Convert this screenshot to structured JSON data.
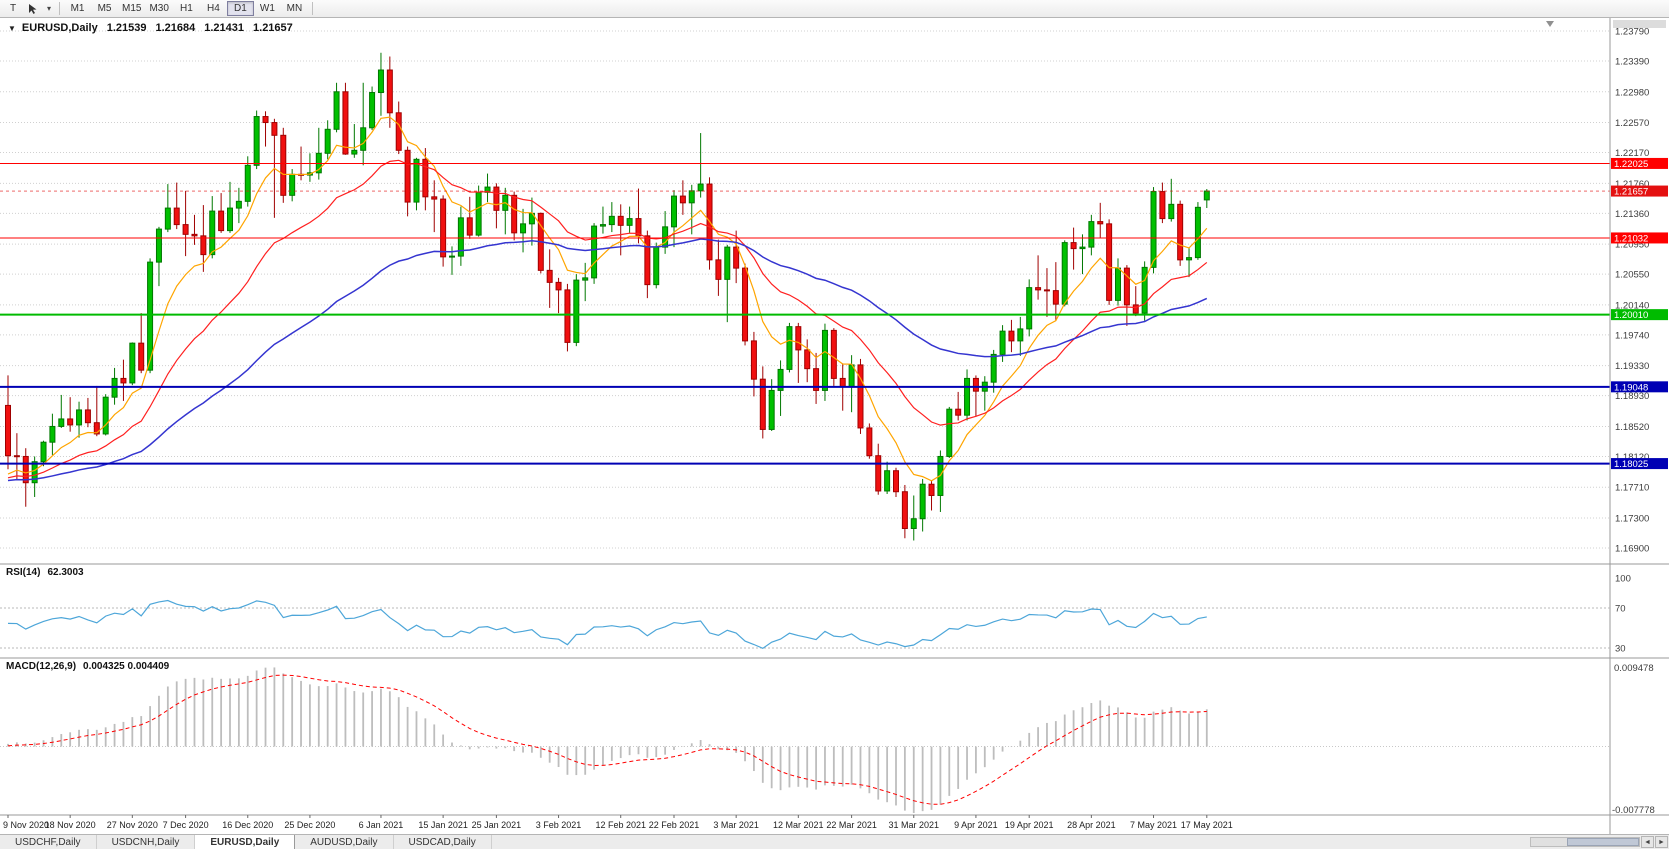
{
  "toolbar": {
    "tool_button": "T",
    "timeframes": [
      "M1",
      "M5",
      "M15",
      "M30",
      "H1",
      "H4",
      "D1",
      "W1",
      "MN"
    ],
    "active_timeframe": "D1"
  },
  "icons": {
    "symbol_marker": "▼",
    "dropdown_caret": "▾",
    "scroll_left": "◄",
    "scroll_right": "►"
  },
  "chart": {
    "type": "candlestick",
    "symbol_label": "EURUSD,Daily",
    "ohlc": {
      "open": "1.21539",
      "high": "1.21684",
      "low": "1.21431",
      "close": "1.21657"
    },
    "current_price": "1.21657",
    "scale": {
      "top": 1.2379,
      "bottom": 1.169
    },
    "price_axis": [
      "1.23790",
      "1.23390",
      "1.22980",
      "1.22570",
      "1.22170",
      "1.21760",
      "1.21360",
      "1.20950",
      "1.20550",
      "1.20140",
      "1.19740",
      "1.19330",
      "1.18930",
      "1.18520",
      "1.18120",
      "1.17710",
      "1.17300",
      "1.16900"
    ],
    "hlines": [
      {
        "value": 1.22025,
        "label": "1.22025",
        "color": "#ff0000",
        "width": 1
      },
      {
        "value": 1.21032,
        "label": "1.21032",
        "color": "#ff0000",
        "width": 1
      },
      {
        "value": 1.2001,
        "label": "1.20010",
        "color": "#00bb00",
        "width": 2
      },
      {
        "value": 1.19048,
        "label": "1.19048",
        "color": "#0000b4",
        "width": 2
      },
      {
        "value": 1.18025,
        "label": "1.18025",
        "color": "#0000b4",
        "width": 2
      }
    ],
    "dates": [
      {
        "index": 0,
        "label": "9 Nov 2020"
      },
      {
        "index": 7,
        "label": "18 Nov 2020"
      },
      {
        "index": 14,
        "label": "27 Nov 2020"
      },
      {
        "index": 20,
        "label": "7 Dec 2020"
      },
      {
        "index": 27,
        "label": "16 Dec 2020"
      },
      {
        "index": 34,
        "label": "25 Dec 2020"
      },
      {
        "index": 42,
        "label": "6 Jan 2021"
      },
      {
        "index": 49,
        "label": "15 Jan 2021"
      },
      {
        "index": 55,
        "label": "25 Jan 2021"
      },
      {
        "index": 62,
        "label": "3 Feb 2021"
      },
      {
        "index": 69,
        "label": "12 Feb 2021"
      },
      {
        "index": 75,
        "label": "22 Feb 2021"
      },
      {
        "index": 82,
        "label": "3 Mar 2021"
      },
      {
        "index": 89,
        "label": "12 Mar 2021"
      },
      {
        "index": 95,
        "label": "22 Mar 2021"
      },
      {
        "index": 102,
        "label": "31 Mar 2021"
      },
      {
        "index": 109,
        "label": "9 Apr 2021"
      },
      {
        "index": 115,
        "label": "19 Apr 2021"
      },
      {
        "index": 122,
        "label": "28 Apr 2021"
      },
      {
        "index": 129,
        "label": "7 May 2021"
      },
      {
        "index": 135,
        "label": "17 May 2021"
      }
    ],
    "candles": [
      [
        1.188,
        1.192,
        1.1795,
        1.1813
      ],
      [
        1.1813,
        1.1843,
        1.178,
        1.1812
      ],
      [
        1.1812,
        1.1823,
        1.1745,
        1.1777
      ],
      [
        1.1777,
        1.1812,
        1.1758,
        1.1805
      ],
      [
        1.1805,
        1.1833,
        1.1799,
        1.1831
      ],
      [
        1.1831,
        1.1869,
        1.1814,
        1.1852
      ],
      [
        1.1852,
        1.1894,
        1.185,
        1.1862
      ],
      [
        1.1862,
        1.1891,
        1.1845,
        1.1854
      ],
      [
        1.1854,
        1.1885,
        1.1837,
        1.1874
      ],
      [
        1.1874,
        1.189,
        1.1851,
        1.1857
      ],
      [
        1.1857,
        1.1906,
        1.1839,
        1.1842
      ],
      [
        1.1842,
        1.1895,
        1.184,
        1.1891
      ],
      [
        1.1891,
        1.193,
        1.1881,
        1.1916
      ],
      [
        1.1916,
        1.1941,
        1.1886,
        1.191
      ],
      [
        1.191,
        1.1964,
        1.1907,
        1.1963
      ],
      [
        1.1963,
        1.2003,
        1.1923,
        1.1927
      ],
      [
        1.1927,
        1.2076,
        1.1923,
        1.2071
      ],
      [
        1.2071,
        1.2118,
        1.2039,
        1.2115
      ],
      [
        1.2115,
        1.2175,
        1.2111,
        1.2143
      ],
      [
        1.2143,
        1.2177,
        1.2115,
        1.2121
      ],
      [
        1.2121,
        1.2166,
        1.2079,
        1.2108
      ],
      [
        1.2108,
        1.2134,
        1.2094,
        1.2106
      ],
      [
        1.2106,
        1.2147,
        1.2058,
        1.2081
      ],
      [
        1.2081,
        1.2159,
        1.2076,
        1.2139
      ],
      [
        1.2139,
        1.2163,
        1.211,
        1.2113
      ],
      [
        1.2113,
        1.2178,
        1.211,
        1.2143
      ],
      [
        1.2143,
        1.217,
        1.2123,
        1.2152
      ],
      [
        1.2152,
        1.2212,
        1.2145,
        1.22
      ],
      [
        1.22,
        1.2273,
        1.2195,
        1.2265
      ],
      [
        1.2265,
        1.2272,
        1.2225,
        1.2257
      ],
      [
        1.2257,
        1.2262,
        1.213,
        1.224
      ],
      [
        1.224,
        1.225,
        1.215,
        1.216
      ],
      [
        1.216,
        1.2195,
        1.2152,
        1.2188
      ],
      [
        1.2188,
        1.2225,
        1.218,
        1.2187
      ],
      [
        1.2187,
        1.2216,
        1.2178,
        1.219
      ],
      [
        1.219,
        1.225,
        1.2181,
        1.2216
      ],
      [
        1.2216,
        1.226,
        1.2208,
        1.2248
      ],
      [
        1.2248,
        1.231,
        1.2244,
        1.2298
      ],
      [
        1.2298,
        1.231,
        1.2214,
        1.2215
      ],
      [
        1.2215,
        1.2255,
        1.221,
        1.222
      ],
      [
        1.222,
        1.231,
        1.22,
        1.225
      ],
      [
        1.225,
        1.2305,
        1.2247,
        1.2297
      ],
      [
        1.2297,
        1.235,
        1.2266,
        1.2327
      ],
      [
        1.2327,
        1.2345,
        1.225,
        1.227
      ],
      [
        1.227,
        1.2285,
        1.2215,
        1.222
      ],
      [
        1.222,
        1.2225,
        1.2132,
        1.2151
      ],
      [
        1.2151,
        1.221,
        1.214,
        1.2208
      ],
      [
        1.2208,
        1.2223,
        1.214,
        1.2158
      ],
      [
        1.2158,
        1.218,
        1.2111,
        1.2155
      ],
      [
        1.2155,
        1.216,
        1.2065,
        1.2078
      ],
      [
        1.2078,
        1.2092,
        1.2054,
        1.2079
      ],
      [
        1.2079,
        1.2145,
        1.2066,
        1.213
      ],
      [
        1.213,
        1.2158,
        1.2102,
        1.2107
      ],
      [
        1.2107,
        1.2173,
        1.2105,
        1.2164
      ],
      [
        1.2164,
        1.2189,
        1.2151,
        1.2171
      ],
      [
        1.2171,
        1.2176,
        1.2116,
        1.214
      ],
      [
        1.214,
        1.217,
        1.2108,
        1.216
      ],
      [
        1.216,
        1.2165,
        1.21,
        1.211
      ],
      [
        1.211,
        1.2142,
        1.2084,
        1.2122
      ],
      [
        1.2122,
        1.2157,
        1.2093,
        1.2136
      ],
      [
        1.2136,
        1.2137,
        1.2056,
        1.206
      ],
      [
        1.206,
        1.2088,
        1.201,
        1.2044
      ],
      [
        1.2044,
        1.205,
        1.2003,
        1.2034
      ],
      [
        1.2034,
        1.2042,
        1.1952,
        1.1964
      ],
      [
        1.1964,
        1.2055,
        1.1959,
        1.2047
      ],
      [
        1.2047,
        1.207,
        1.2019,
        1.205
      ],
      [
        1.205,
        1.2123,
        1.2042,
        1.2119
      ],
      [
        1.2119,
        1.2145,
        1.2109,
        1.2121
      ],
      [
        1.2121,
        1.2151,
        1.2111,
        1.2132
      ],
      [
        1.2132,
        1.2148,
        1.208,
        1.212
      ],
      [
        1.212,
        1.2145,
        1.211,
        1.2129
      ],
      [
        1.2129,
        1.2169,
        1.2096,
        1.2106
      ],
      [
        1.2106,
        1.2113,
        1.2023,
        1.2041
      ],
      [
        1.2041,
        1.2097,
        1.2036,
        1.2091
      ],
      [
        1.2091,
        1.2139,
        1.2082,
        1.2118
      ],
      [
        1.2118,
        1.2167,
        1.2091,
        1.2159
      ],
      [
        1.2159,
        1.218,
        1.2134,
        1.215
      ],
      [
        1.215,
        1.2174,
        1.2108,
        1.2166
      ],
      [
        1.2166,
        1.2243,
        1.2157,
        1.2175
      ],
      [
        1.2175,
        1.2184,
        1.2061,
        1.2074
      ],
      [
        1.2074,
        1.2101,
        1.2026,
        1.2048
      ],
      [
        1.2048,
        1.2094,
        1.1991,
        1.2091
      ],
      [
        1.2091,
        1.2113,
        1.2043,
        1.2063
      ],
      [
        1.2063,
        1.2069,
        1.196,
        1.1966
      ],
      [
        1.1966,
        1.1978,
        1.1892,
        1.1915
      ],
      [
        1.1915,
        1.1932,
        1.1836,
        1.1848
      ],
      [
        1.1848,
        1.1915,
        1.1846,
        1.19
      ],
      [
        1.19,
        1.194,
        1.1866,
        1.1928
      ],
      [
        1.1928,
        1.199,
        1.1924,
        1.1985
      ],
      [
        1.1985,
        1.199,
        1.191,
        1.1954
      ],
      [
        1.1954,
        1.1968,
        1.1911,
        1.1929
      ],
      [
        1.1929,
        1.195,
        1.1882,
        1.19
      ],
      [
        1.19,
        1.1989,
        1.1886,
        1.198
      ],
      [
        1.198,
        1.1983,
        1.1906,
        1.1916
      ],
      [
        1.1916,
        1.1936,
        1.1873,
        1.1905
      ],
      [
        1.1905,
        1.1947,
        1.1871,
        1.1934
      ],
      [
        1.1934,
        1.1942,
        1.1842,
        1.185
      ],
      [
        1.185,
        1.1856,
        1.1809,
        1.1813
      ],
      [
        1.1813,
        1.1829,
        1.1761,
        1.1766
      ],
      [
        1.1766,
        1.1805,
        1.1762,
        1.1793
      ],
      [
        1.1793,
        1.1797,
        1.1758,
        1.1765
      ],
      [
        1.1765,
        1.1774,
        1.1703,
        1.1716
      ],
      [
        1.1716,
        1.176,
        1.17,
        1.1729
      ],
      [
        1.1729,
        1.1782,
        1.1712,
        1.1775
      ],
      [
        1.1775,
        1.178,
        1.174,
        1.176
      ],
      [
        1.176,
        1.182,
        1.1738,
        1.1812
      ],
      [
        1.1812,
        1.1878,
        1.181,
        1.1875
      ],
      [
        1.1875,
        1.1898,
        1.186,
        1.1867
      ],
      [
        1.1867,
        1.1928,
        1.186,
        1.1916
      ],
      [
        1.1916,
        1.192,
        1.1865,
        1.1899
      ],
      [
        1.1899,
        1.1919,
        1.1873,
        1.1911
      ],
      [
        1.1911,
        1.1954,
        1.1897,
        1.1948
      ],
      [
        1.1948,
        1.1987,
        1.1938,
        1.1979
      ],
      [
        1.1979,
        1.1994,
        1.1951,
        1.1966
      ],
      [
        1.1966,
        1.1998,
        1.1946,
        1.1982
      ],
      [
        1.1982,
        1.2048,
        1.1972,
        1.2037
      ],
      [
        1.2037,
        1.208,
        1.2021,
        1.2034
      ],
      [
        1.2034,
        1.2063,
        1.1998,
        1.2033
      ],
      [
        1.2033,
        1.2071,
        1.1993,
        1.2015
      ],
      [
        1.2015,
        1.21,
        1.2012,
        1.2097
      ],
      [
        1.2097,
        1.2117,
        1.2061,
        1.2089
      ],
      [
        1.2089,
        1.2108,
        1.2055,
        1.2091
      ],
      [
        1.2091,
        1.2134,
        1.208,
        1.2125
      ],
      [
        1.2125,
        1.215,
        1.2103,
        1.2122
      ],
      [
        1.2122,
        1.2128,
        1.2014,
        1.202
      ],
      [
        1.202,
        1.2076,
        1.2013,
        1.2063
      ],
      [
        1.2063,
        1.2067,
        1.1986,
        1.2014
      ],
      [
        1.2014,
        1.2039,
        1.1999,
        1.2003
      ],
      [
        1.2003,
        1.2072,
        1.1993,
        1.2064
      ],
      [
        1.2064,
        1.2171,
        1.2056,
        1.2165
      ],
      [
        1.2165,
        1.2177,
        1.2123,
        1.2129
      ],
      [
        1.2129,
        1.2182,
        1.2125,
        1.2148
      ],
      [
        1.2148,
        1.2153,
        1.2066,
        1.2074
      ],
      [
        1.2074,
        1.209,
        1.2051,
        1.2077
      ],
      [
        1.2077,
        1.2151,
        1.2074,
        1.2144
      ],
      [
        1.21539,
        1.21684,
        1.21431,
        1.21657
      ]
    ]
  },
  "rsi": {
    "name": "RSI(14)",
    "value": "62.3003",
    "period": 14,
    "levels": [
      "100",
      "70",
      "30"
    ]
  },
  "macd": {
    "name": "MACD(12,26,9)",
    "values": "0.004325 0.004409",
    "axis_max": "0.009478",
    "axis_min": "-0.007778"
  },
  "tabs": [
    "USDCHF,Daily",
    "USDCNH,Daily",
    "EURUSD,Daily",
    "AUDUSD,Daily",
    "USDCAD,Daily"
  ],
  "active_tab": "EURUSD,Daily",
  "colors": {
    "up": "#00c000",
    "up_border": "#007800",
    "down": "#f01010",
    "down_border": "#a00000",
    "ma_fast": "#ffa500",
    "ma_mid": "#ff2020",
    "ma_slow": "#3535d0",
    "rsi": "#4da6d9",
    "macd_hist": "#bdbdbd",
    "macd_signal": "#ff0000",
    "price_label_bg": "#e41010",
    "grid": "#d0d0d0",
    "axis_text": "#3c3c3c"
  }
}
